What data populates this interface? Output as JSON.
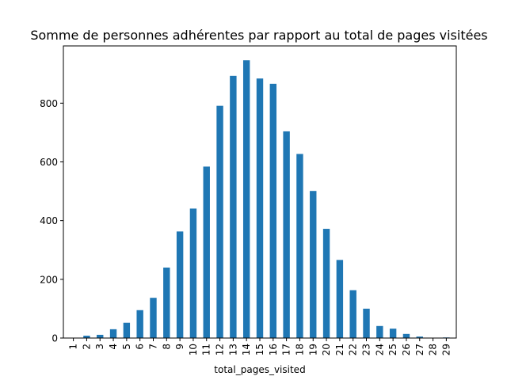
{
  "chart_data": {
    "type": "bar",
    "title": "Somme de personnes adhérentes par rapport au total de pages visitées",
    "xlabel": "total_pages_visited",
    "ylabel": "",
    "categories": [
      "1",
      "2",
      "3",
      "4",
      "5",
      "6",
      "7",
      "8",
      "9",
      "10",
      "11",
      "12",
      "13",
      "14",
      "15",
      "16",
      "17",
      "18",
      "19",
      "20",
      "21",
      "22",
      "23",
      "24",
      "25",
      "26",
      "27",
      "28",
      "29"
    ],
    "values": [
      0,
      8,
      11,
      30,
      52,
      95,
      137,
      240,
      363,
      441,
      584,
      791,
      893,
      946,
      884,
      866,
      704,
      627,
      501,
      372,
      266,
      163,
      100,
      41,
      32,
      14,
      5,
      1,
      2
    ],
    "ylim": [
      0,
      995
    ],
    "yticks": [
      0,
      200,
      400,
      600,
      800
    ],
    "grid": false,
    "legend": "none",
    "bar_color": "#1f77b4"
  }
}
